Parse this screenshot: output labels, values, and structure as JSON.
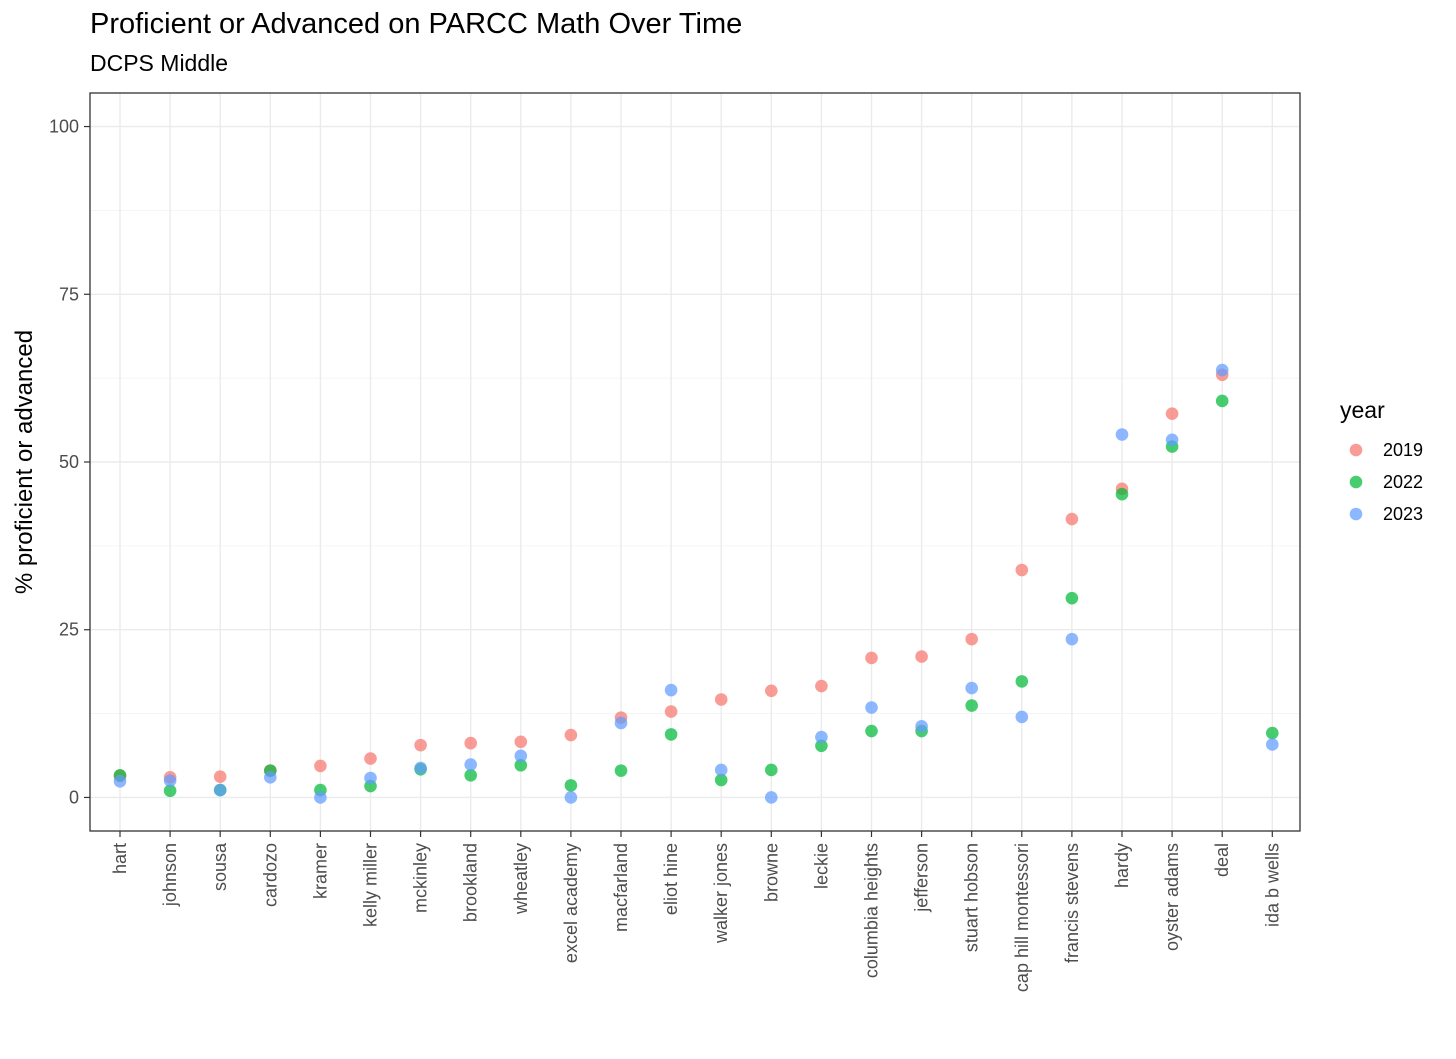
{
  "chart_data": {
    "type": "scatter",
    "title": "Proficient or Advanced on PARCC Math Over Time",
    "subtitle": "DCPS Middle",
    "xlabel": "",
    "ylabel": "% proficient or advanced",
    "ylim": [
      -5,
      105
    ],
    "y_ticks": [
      0,
      25,
      50,
      75,
      100
    ],
    "grid": true,
    "legend": {
      "title": "year",
      "position": "right"
    },
    "categories": [
      "hart",
      "johnson",
      "sousa",
      "cardozo",
      "kramer",
      "kelly miller",
      "mckinley",
      "brookland",
      "wheatley",
      "excel academy",
      "macfarland",
      "eliot hine",
      "walker jones",
      "browne",
      "leckie",
      "columbia heights",
      "jefferson",
      "stuart hobson",
      "cap hill montessori",
      "francis stevens",
      "hardy",
      "oyster adams",
      "deal",
      "ida b wells"
    ],
    "series": [
      {
        "name": "2019",
        "color": "#F8766D",
        "values": [
          3.2,
          3.0,
          3.1,
          4.0,
          4.7,
          5.8,
          7.8,
          8.1,
          8.3,
          9.3,
          11.9,
          12.8,
          14.6,
          15.9,
          16.6,
          20.8,
          21.0,
          23.6,
          33.9,
          41.5,
          46.0,
          57.2,
          63.0,
          null
        ]
      },
      {
        "name": "2022",
        "color": "#00BA38",
        "values": [
          3.3,
          1.0,
          1.1,
          4.0,
          1.1,
          1.7,
          4.2,
          3.3,
          4.8,
          1.8,
          4.0,
          9.4,
          2.6,
          4.1,
          7.7,
          9.9,
          9.9,
          13.7,
          17.3,
          29.7,
          45.2,
          52.3,
          59.1,
          9.6
        ]
      },
      {
        "name": "2023",
        "color": "#619CFF",
        "values": [
          2.4,
          2.5,
          1.1,
          3.0,
          0.0,
          2.9,
          4.4,
          4.9,
          6.2,
          0.0,
          11.1,
          16.0,
          4.1,
          0.0,
          9.0,
          13.4,
          10.6,
          16.3,
          12.0,
          23.6,
          54.1,
          53.3,
          63.7,
          7.9
        ]
      }
    ]
  }
}
